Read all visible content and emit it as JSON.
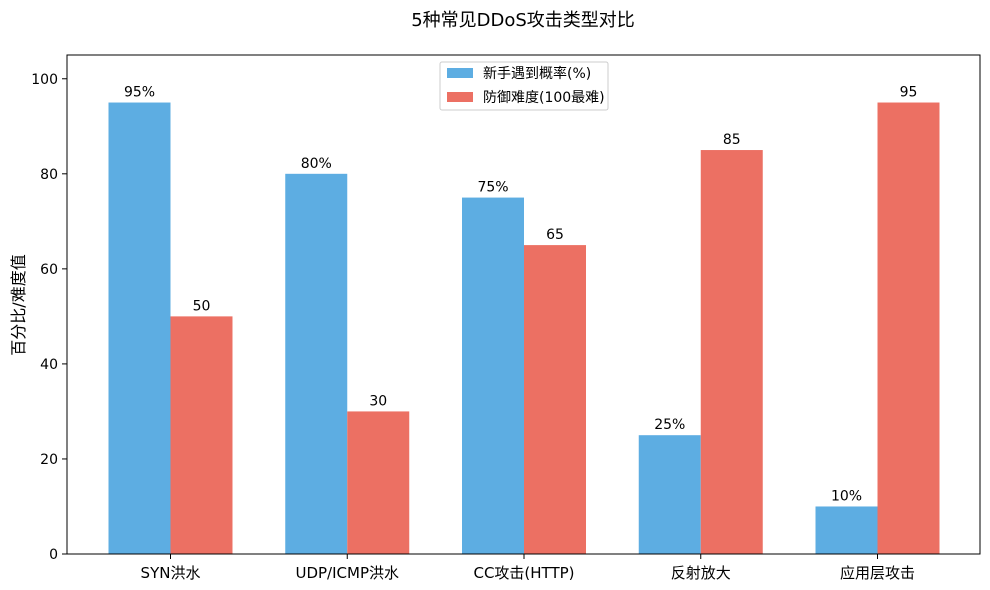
{
  "chart_data": {
    "type": "bar",
    "title": "5种常见DDoS攻击类型对比",
    "xlabel": "",
    "ylabel": "百分比/难度值",
    "ylim": [
      0,
      105
    ],
    "yticks": [
      0,
      20,
      40,
      60,
      80,
      100
    ],
    "grid": false,
    "legend_position": "top-center",
    "categories": [
      "SYN洪水",
      "UDP/ICMP洪水",
      "CC攻击(HTTP)",
      "反射放大",
      "应用层攻击"
    ],
    "series": [
      {
        "name": "新手遇到概率(%)",
        "color": "#5DADE2",
        "values": [
          95,
          80,
          75,
          25,
          10
        ],
        "labels": [
          "95%",
          "80%",
          "75%",
          "25%",
          "10%"
        ]
      },
      {
        "name": "防御难度(100最难)",
        "color": "#EC7063",
        "values": [
          50,
          30,
          65,
          85,
          95
        ],
        "labels": [
          "50",
          "30",
          "65",
          "85",
          "95"
        ]
      }
    ]
  }
}
